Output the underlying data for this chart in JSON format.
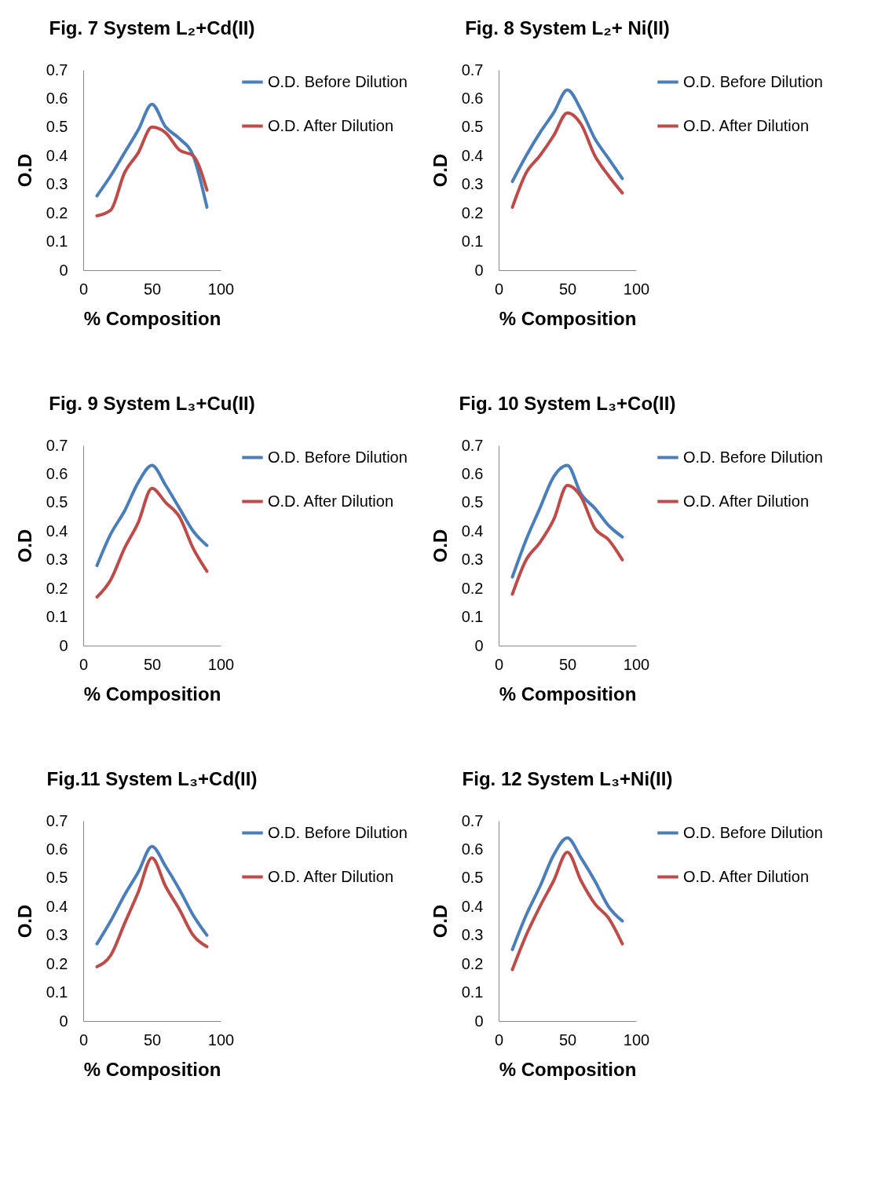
{
  "chart_data": [
    {
      "type": "line",
      "title": "Fig. 7 System L₂+Cd(II)",
      "xlabel": "% Composition",
      "ylabel": "O.D",
      "x": [
        10,
        20,
        30,
        40,
        50,
        60,
        70,
        80,
        90
      ],
      "xlim": [
        0,
        100
      ],
      "xticks": [
        0,
        50,
        100
      ],
      "ylim": [
        0,
        0.7
      ],
      "yticks": [
        0,
        0.1,
        0.2,
        0.3,
        0.4,
        0.5,
        0.6,
        0.7
      ],
      "grid": false,
      "legend": "right",
      "series": [
        {
          "name": "O.D. Before Dilution",
          "color": "#4a7ebb",
          "values": [
            0.26,
            0.33,
            0.41,
            0.49,
            0.58,
            0.5,
            0.46,
            0.4,
            0.22
          ]
        },
        {
          "name": "O.D. After Dilution",
          "color": "#be4b48",
          "values": [
            0.19,
            0.21,
            0.34,
            0.41,
            0.5,
            0.48,
            0.42,
            0.4,
            0.28
          ]
        }
      ]
    },
    {
      "type": "line",
      "title": "Fig. 8 System L₂+ Ni(II)",
      "xlabel": "% Composition",
      "ylabel": "O.D",
      "x": [
        10,
        20,
        30,
        40,
        50,
        60,
        70,
        80,
        90
      ],
      "xlim": [
        0,
        100
      ],
      "xticks": [
        0,
        50,
        100
      ],
      "ylim": [
        0,
        0.7
      ],
      "yticks": [
        0,
        0.1,
        0.2,
        0.3,
        0.4,
        0.5,
        0.6,
        0.7
      ],
      "grid": false,
      "legend": "right",
      "series": [
        {
          "name": "O.D. Before Dilution",
          "color": "#4a7ebb",
          "values": [
            0.31,
            0.4,
            0.48,
            0.55,
            0.63,
            0.56,
            0.46,
            0.39,
            0.32
          ]
        },
        {
          "name": "O.D. After Dilution",
          "color": "#be4b48",
          "values": [
            0.22,
            0.34,
            0.4,
            0.47,
            0.55,
            0.51,
            0.4,
            0.33,
            0.27
          ]
        }
      ]
    },
    {
      "type": "line",
      "title": "Fig. 9 System L₃+Cu(II)",
      "xlabel": "% Composition",
      "ylabel": "O.D",
      "x": [
        10,
        20,
        30,
        40,
        50,
        60,
        70,
        80,
        90
      ],
      "xlim": [
        0,
        100
      ],
      "xticks": [
        0,
        50,
        100
      ],
      "ylim": [
        0,
        0.7
      ],
      "yticks": [
        0,
        0.1,
        0.2,
        0.3,
        0.4,
        0.5,
        0.6,
        0.7
      ],
      "grid": false,
      "legend": "right",
      "series": [
        {
          "name": "O.D. Before Dilution",
          "color": "#4a7ebb",
          "values": [
            0.28,
            0.39,
            0.47,
            0.57,
            0.63,
            0.56,
            0.48,
            0.4,
            0.35
          ]
        },
        {
          "name": "O.D. After Dilution",
          "color": "#be4b48",
          "values": [
            0.17,
            0.23,
            0.34,
            0.43,
            0.55,
            0.5,
            0.45,
            0.34,
            0.26
          ]
        }
      ]
    },
    {
      "type": "line",
      "title": "Fig. 10 System L₃+Co(II)",
      "xlabel": "% Composition",
      "ylabel": "O.D",
      "x": [
        10,
        20,
        30,
        40,
        50,
        60,
        70,
        80,
        90
      ],
      "xlim": [
        0,
        100
      ],
      "xticks": [
        0,
        50,
        100
      ],
      "ylim": [
        0,
        0.7
      ],
      "yticks": [
        0,
        0.1,
        0.2,
        0.3,
        0.4,
        0.5,
        0.6,
        0.7
      ],
      "grid": false,
      "legend": "right",
      "series": [
        {
          "name": "O.D. Before Dilution",
          "color": "#4a7ebb",
          "values": [
            0.24,
            0.37,
            0.48,
            0.59,
            0.63,
            0.53,
            0.48,
            0.42,
            0.38
          ]
        },
        {
          "name": "O.D. After Dilution",
          "color": "#be4b48",
          "values": [
            0.18,
            0.3,
            0.36,
            0.44,
            0.56,
            0.52,
            0.41,
            0.37,
            0.3
          ]
        }
      ]
    },
    {
      "type": "line",
      "title": "Fig.11 System L₃+Cd(II)",
      "xlabel": "% Composition",
      "ylabel": "O.D",
      "x": [
        10,
        20,
        30,
        40,
        50,
        60,
        70,
        80,
        90
      ],
      "xlim": [
        0,
        100
      ],
      "xticks": [
        0,
        50,
        100
      ],
      "ylim": [
        0,
        0.7
      ],
      "yticks": [
        0,
        0.1,
        0.2,
        0.3,
        0.4,
        0.5,
        0.6,
        0.7
      ],
      "grid": false,
      "legend": "right",
      "series": [
        {
          "name": "O.D. Before Dilution",
          "color": "#4a7ebb",
          "values": [
            0.27,
            0.35,
            0.44,
            0.52,
            0.61,
            0.54,
            0.46,
            0.37,
            0.3
          ]
        },
        {
          "name": "O.D. After Dilution",
          "color": "#be4b48",
          "values": [
            0.19,
            0.23,
            0.34,
            0.45,
            0.57,
            0.47,
            0.39,
            0.3,
            0.26
          ]
        }
      ]
    },
    {
      "type": "line",
      "title": "Fig. 12 System L₃+Ni(II)",
      "xlabel": "% Composition",
      "ylabel": "O.D",
      "x": [
        10,
        20,
        30,
        40,
        50,
        60,
        70,
        80,
        90
      ],
      "xlim": [
        0,
        100
      ],
      "xticks": [
        0,
        50,
        100
      ],
      "ylim": [
        0,
        0.7
      ],
      "yticks": [
        0,
        0.1,
        0.2,
        0.3,
        0.4,
        0.5,
        0.6,
        0.7
      ],
      "grid": false,
      "legend": "right",
      "series": [
        {
          "name": "O.D. Before Dilution",
          "color": "#4a7ebb",
          "values": [
            0.25,
            0.37,
            0.47,
            0.58,
            0.64,
            0.57,
            0.49,
            0.4,
            0.35
          ]
        },
        {
          "name": "O.D. After Dilution",
          "color": "#be4b48",
          "values": [
            0.18,
            0.3,
            0.4,
            0.49,
            0.59,
            0.49,
            0.41,
            0.36,
            0.27
          ]
        }
      ]
    }
  ]
}
